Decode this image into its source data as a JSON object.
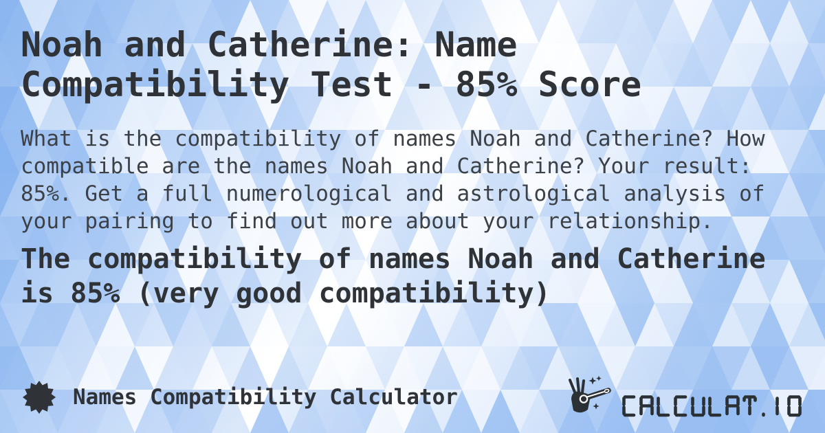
{
  "header": {
    "title": "Noah and Catherine: Name Compatibility Test - 85% Score"
  },
  "main": {
    "description": "What is the compatibility of names Noah and Catherine? How compatible are the names Noah and Catherine? Your result: 85%. Get a full numerological and astrological analysis of your pairing to find out more about your relationship.",
    "result_statement": "The compatibility of names Noah and Catherine is 85% (very good compatibility)"
  },
  "facts": {
    "name_1": "Noah",
    "name_2": "Catherine",
    "score": "85%",
    "verdict": "very good compatibility"
  },
  "footer": {
    "calculator_label": "Names Compatibility Calculator",
    "logo_text": "CALCULAT.IO",
    "badge_icon": "starburst-icon",
    "logo_icon": "magic-wand-hand-icon"
  },
  "colors": {
    "ink_title": "#2f3337",
    "ink_body": "#3c4147",
    "ink_logo": "#2b3034",
    "pattern_blue": "#7cacee",
    "bg_edge": "#9fc3f2",
    "bg_mid": "#d7e6fb",
    "bg_light": "#ffffff",
    "bg_right": "#b4d0f6"
  }
}
